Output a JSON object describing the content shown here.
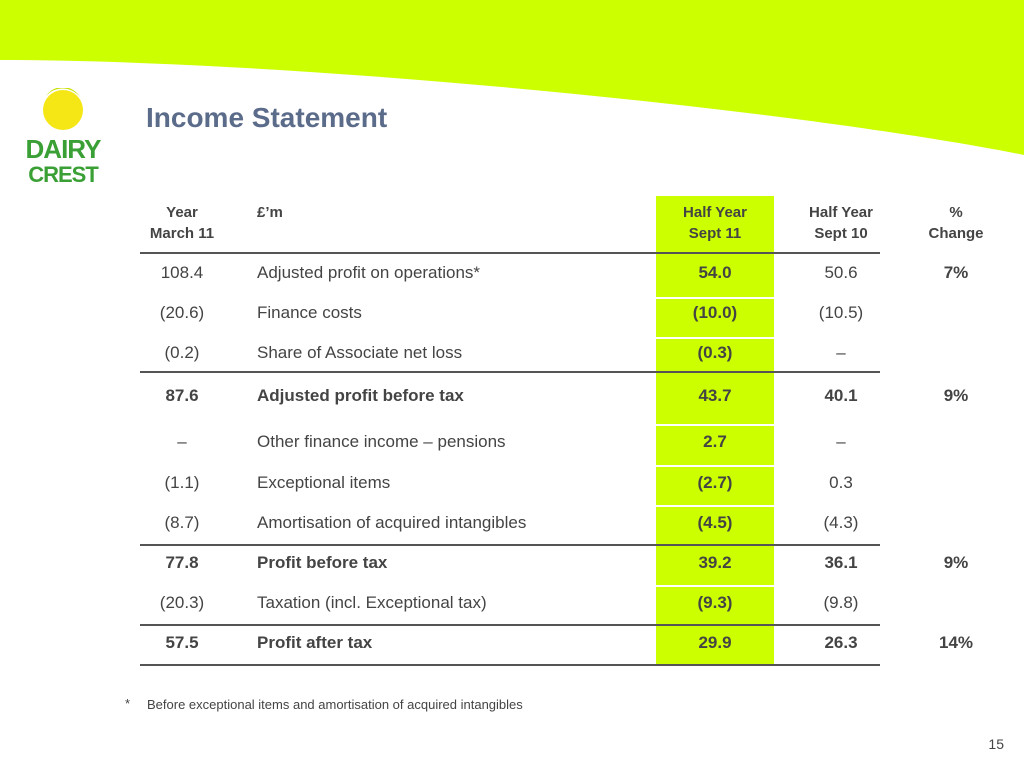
{
  "slide": {
    "title": "Income Statement",
    "page_number": "15",
    "footnote_marker": "*",
    "footnote": "Before exceptional items and amortisation of acquired intangibles"
  },
  "logo": {
    "text_line1": "DAIRY",
    "text_line2": "CREST",
    "sun_color": "#f5e616",
    "text_color": "#3aa035"
  },
  "colors": {
    "banner": "#ccff00",
    "highlight_column": "#ccff00",
    "title": "#5b6b8a"
  },
  "table": {
    "headers": {
      "year": [
        "Year",
        "March 11"
      ],
      "label": "£’m",
      "half_year_sept11": [
        "Half Year",
        "Sept 11"
      ],
      "half_year_sept10": [
        "Half Year",
        "Sept 10"
      ],
      "change": [
        "%",
        "Change"
      ]
    },
    "rows": [
      {
        "year": "108.4",
        "label": "Adjusted profit on operations*",
        "hy11": "54.0",
        "hy10": "50.6",
        "change": "7%",
        "bold": false
      },
      {
        "year": "(20.6)",
        "label": "Finance costs",
        "hy11": "(10.0)",
        "hy10": "(10.5)",
        "change": "",
        "bold": false
      },
      {
        "year": "(0.2)",
        "label": "Share of Associate net loss",
        "hy11": "(0.3)",
        "hy10": "–",
        "change": "",
        "bold": false
      },
      {
        "year": "87.6",
        "label": "Adjusted profit before tax",
        "hy11": "43.7",
        "hy10": "40.1",
        "change": "9%",
        "bold": true
      },
      {
        "year": "–",
        "label": "Other finance income – pensions",
        "hy11": "2.7",
        "hy10": "–",
        "change": "",
        "bold": false
      },
      {
        "year": "(1.1)",
        "label": "Exceptional items",
        "hy11": "(2.7)",
        "hy10": "0.3",
        "change": "",
        "bold": false
      },
      {
        "year": "(8.7)",
        "label": "Amortisation of acquired intangibles",
        "hy11": "(4.5)",
        "hy10": "(4.3)",
        "change": "",
        "bold": false
      },
      {
        "year": "77.8",
        "label": "Profit before tax",
        "hy11": "39.2",
        "hy10": "36.1",
        "change": "9%",
        "bold": true
      },
      {
        "year": "(20.3)",
        "label": "Taxation (incl. Exceptional tax)",
        "hy11": "(9.3)",
        "hy10": "(9.8)",
        "change": "",
        "bold": false
      },
      {
        "year": "57.5",
        "label": "Profit after tax",
        "hy11": "29.9",
        "hy10": "26.3",
        "change": "14%",
        "bold": true
      }
    ]
  }
}
